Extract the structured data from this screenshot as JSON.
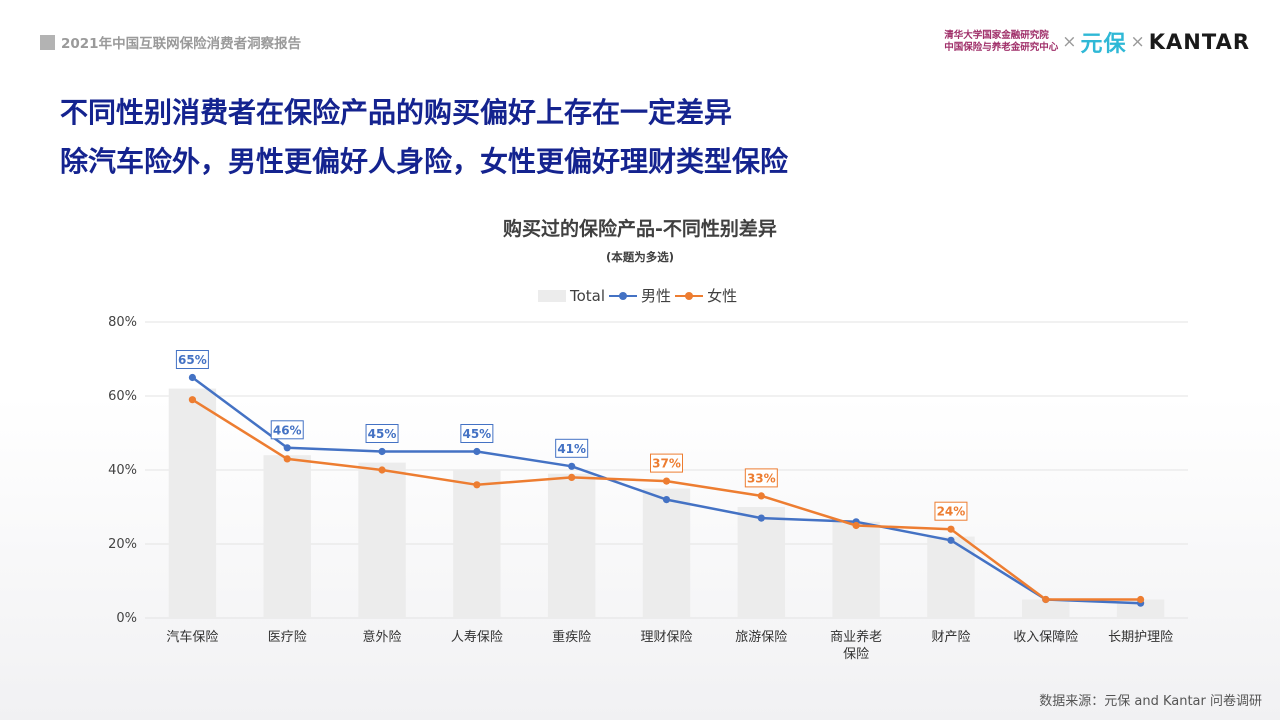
{
  "header": {
    "report_title": "2021年中国互联网保险消费者洞察报告",
    "institution_line1": "清华大学国家金融研究院",
    "institution_line2": "中国保险与养老金研究中心",
    "cross": "×",
    "partner1": "元保",
    "partner2": "KANTAR"
  },
  "headline": {
    "line1": "不同性别消费者在保险产品的购买偏好上存在一定差异",
    "line2": "除汽车险外，男性更偏好人身险，女性更偏好理财类型保险"
  },
  "colors": {
    "male": "#4472c4",
    "female": "#ed7d31",
    "total_bar": "#ececec",
    "grid": "#e3e3e3"
  },
  "chart_data": {
    "type": "bar",
    "title": "购买过的保险产品-不同性别差异",
    "subtitle": "(本题为多选)",
    "legend": [
      "Total",
      "男性",
      "女性"
    ],
    "categories": [
      "汽车保险",
      "医疗险",
      "意外险",
      "人寿保险",
      "重疾险",
      "理财保险",
      "旅游保险",
      "商业养老保险",
      "财产险",
      "收入保障险",
      "长期护理险"
    ],
    "category_lines": [
      [
        "汽车保险"
      ],
      [
        "医疗险"
      ],
      [
        "意外险"
      ],
      [
        "人寿保险"
      ],
      [
        "重疾险"
      ],
      [
        "理财保险"
      ],
      [
        "旅游保险"
      ],
      [
        "商业养老",
        "保险"
      ],
      [
        "财产险"
      ],
      [
        "收入保障险"
      ],
      [
        "长期护理险"
      ]
    ],
    "yticks": [
      "0%",
      "20%",
      "40%",
      "60%",
      "80%"
    ],
    "ylim": [
      0,
      80
    ],
    "series": [
      {
        "name": "Total",
        "kind": "bar",
        "values": [
          62,
          44,
          42,
          40,
          39,
          35,
          30,
          26,
          22,
          5,
          5
        ]
      },
      {
        "name": "男性",
        "kind": "line",
        "values": [
          65,
          46,
          45,
          45,
          41,
          32,
          27,
          26,
          21,
          5,
          4
        ]
      },
      {
        "name": "女性",
        "kind": "line",
        "values": [
          59,
          43,
          40,
          36,
          38,
          37,
          33,
          25,
          24,
          5,
          5
        ]
      }
    ],
    "annotations": [
      {
        "series": "男性",
        "index": 0,
        "text": "65%"
      },
      {
        "series": "男性",
        "index": 1,
        "text": "46%"
      },
      {
        "series": "男性",
        "index": 2,
        "text": "45%"
      },
      {
        "series": "男性",
        "index": 3,
        "text": "45%"
      },
      {
        "series": "男性",
        "index": 4,
        "text": "41%"
      },
      {
        "series": "女性",
        "index": 5,
        "text": "37%"
      },
      {
        "series": "女性",
        "index": 6,
        "text": "33%"
      },
      {
        "series": "女性",
        "index": 8,
        "text": "24%"
      }
    ]
  },
  "source": "数据来源：元保 and Kantar 问卷调研"
}
